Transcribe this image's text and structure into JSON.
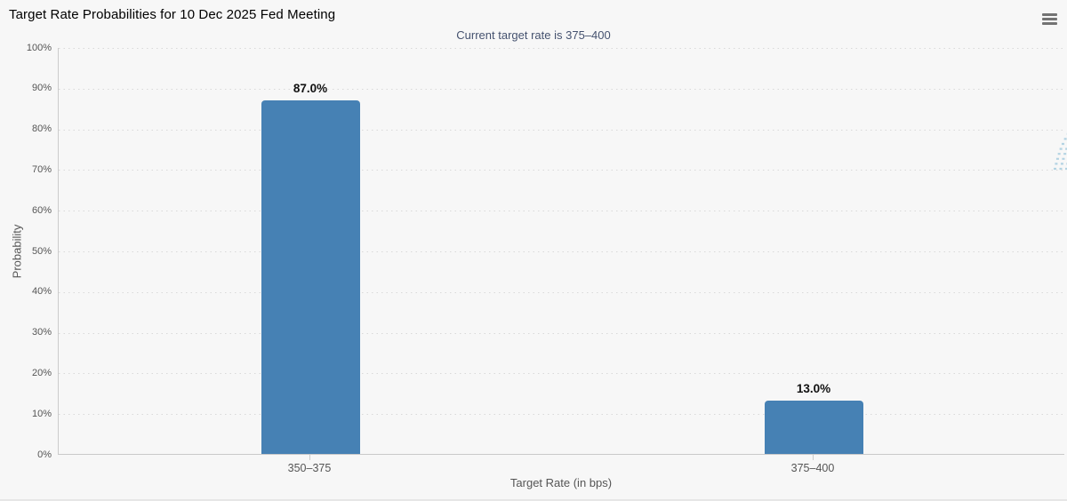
{
  "header": {
    "title": "Target Rate Probabilities for 10 Dec 2025 Fed Meeting",
    "subtitle": "Current target rate is 375–400"
  },
  "icons": {
    "menu": "hamburger-icon",
    "watermark": "q-logo-watermark"
  },
  "colors": {
    "background": "#f7f7f7",
    "bar": "#4681b4",
    "subtitle_text": "#45526f",
    "axis_text": "#555555",
    "gridline": "#d9d9d9",
    "watermark_gray": "#c8c8c8",
    "watermark_blue": "#b0d2e2"
  },
  "chart_data": {
    "type": "bar",
    "title": "Target Rate Probabilities for 10 Dec 2025 Fed Meeting",
    "subtitle": "Current target rate is 375–400",
    "categories": [
      "350–375",
      "375–400"
    ],
    "values": [
      87.0,
      13.0
    ],
    "value_labels": [
      "87.0%",
      "13.0%"
    ],
    "xlabel": "Target Rate (in bps)",
    "ylabel": "Probability",
    "ylim": [
      0,
      100
    ],
    "ytick_step": 10,
    "ytick_suffix": "%",
    "grid": "horizontal-dotted",
    "legend": "none",
    "bar_color": "#4681b4"
  }
}
